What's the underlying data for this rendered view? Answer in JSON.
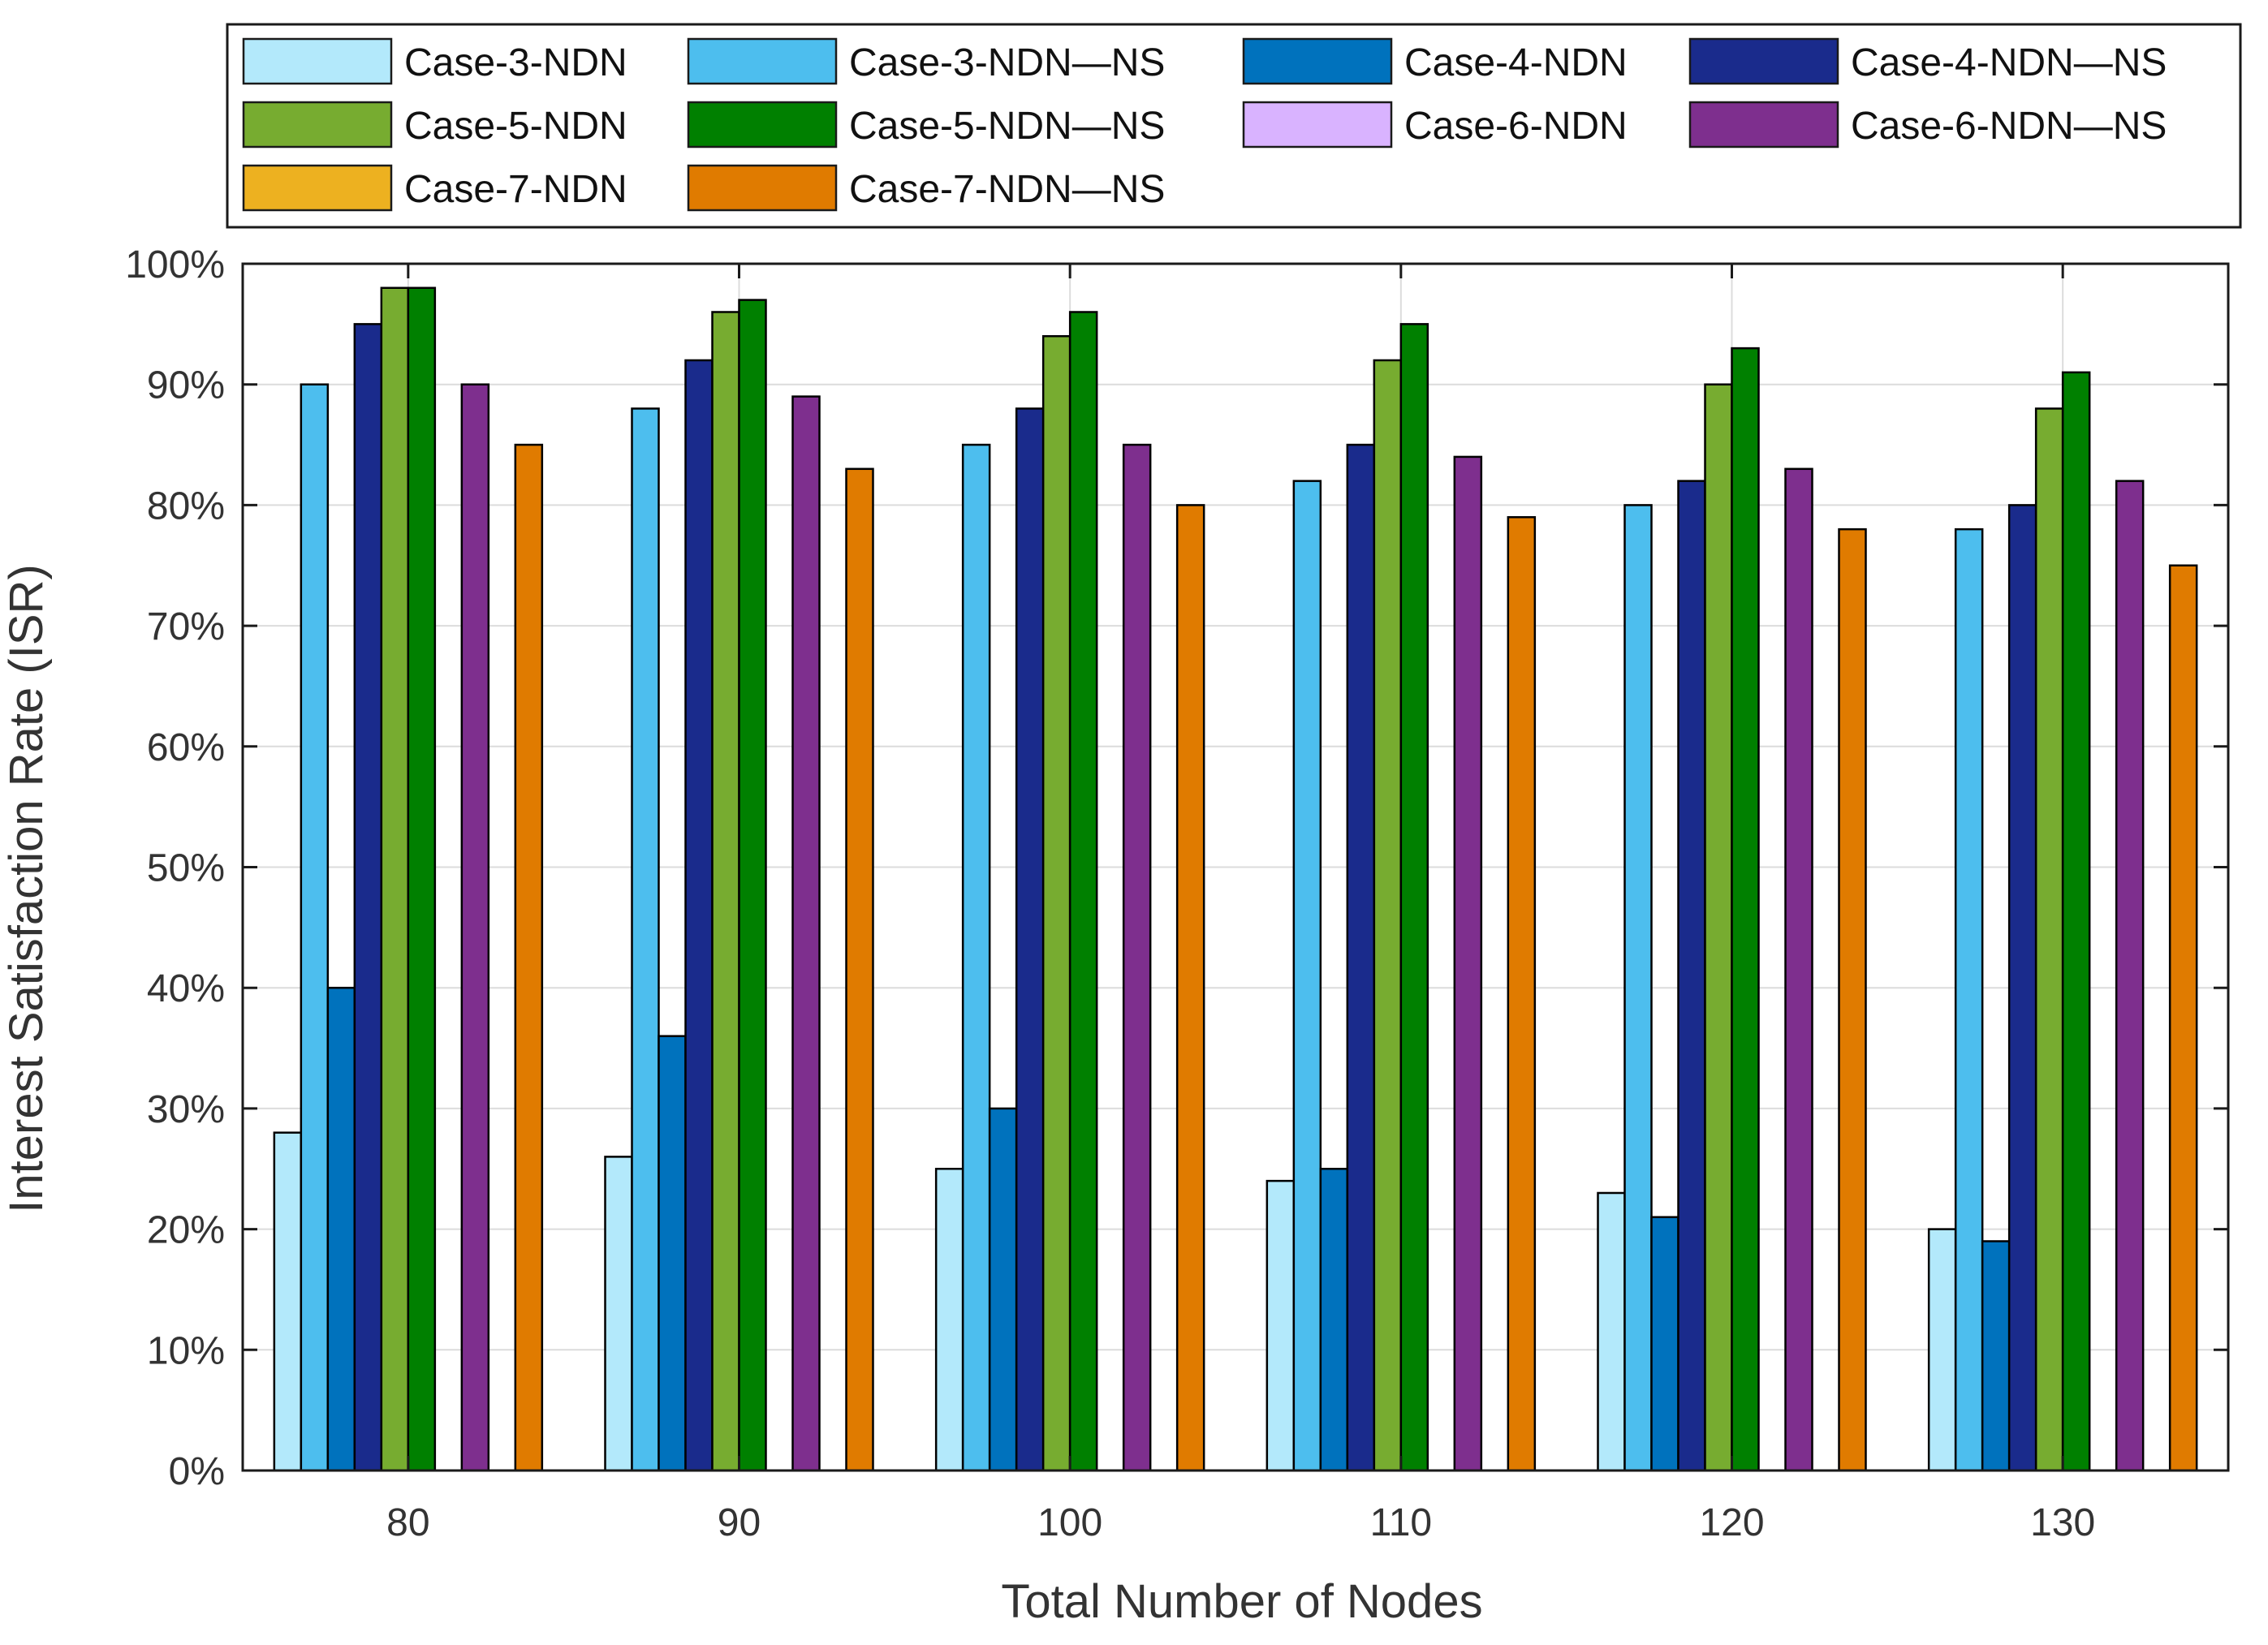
{
  "chart_data": {
    "type": "bar",
    "title": "",
    "xlabel": "Total Number of Nodes",
    "ylabel": "Interest Satisfaction Rate (ISR)",
    "categories": [
      "80",
      "90",
      "100",
      "110",
      "120",
      "130"
    ],
    "ylim": [
      0,
      100
    ],
    "yticks": [
      0,
      10,
      20,
      30,
      40,
      50,
      60,
      70,
      80,
      90,
      100
    ],
    "ytick_labels": [
      "0%",
      "10%",
      "20%",
      "30%",
      "40%",
      "50%",
      "60%",
      "70%",
      "80%",
      "90%",
      "100%"
    ],
    "grid": true,
    "legend_position": "top",
    "series": [
      {
        "name": "Case-3-NDN",
        "color": "#b3e9fb",
        "values": [
          28,
          26,
          25,
          24,
          23,
          20
        ]
      },
      {
        "name": "Case-3-NDN—NS",
        "color": "#4dbeee",
        "values": [
          90,
          88,
          85,
          82,
          80,
          78
        ]
      },
      {
        "name": "Case-4-NDN",
        "color": "#0072bd",
        "values": [
          40,
          36,
          30,
          25,
          21,
          19
        ]
      },
      {
        "name": "Case-4-NDN—NS",
        "color": "#1a2b8c",
        "values": [
          95,
          92,
          88,
          85,
          82,
          80
        ]
      },
      {
        "name": "Case-5-NDN",
        "color": "#77ac30",
        "values": [
          98,
          96,
          94,
          92,
          90,
          88
        ]
      },
      {
        "name": "Case-5-NDN—NS",
        "color": "#008000",
        "values": [
          98,
          97,
          96,
          95,
          93,
          91
        ]
      },
      {
        "name": "Case-6-NDN",
        "color": "#d9b3ff",
        "values": [
          0,
          0,
          0,
          0,
          0,
          0
        ]
      },
      {
        "name": "Case-6-NDN—NS",
        "color": "#7e2f8e",
        "values": [
          90,
          89,
          85,
          84,
          83,
          82
        ]
      },
      {
        "name": "Case-7-NDN",
        "color": "#edb120",
        "values": [
          0,
          0,
          0,
          0,
          0,
          0
        ]
      },
      {
        "name": "Case-7-NDN—NS",
        "color": "#e07b00",
        "values": [
          85,
          83,
          80,
          79,
          78,
          75
        ]
      }
    ]
  }
}
